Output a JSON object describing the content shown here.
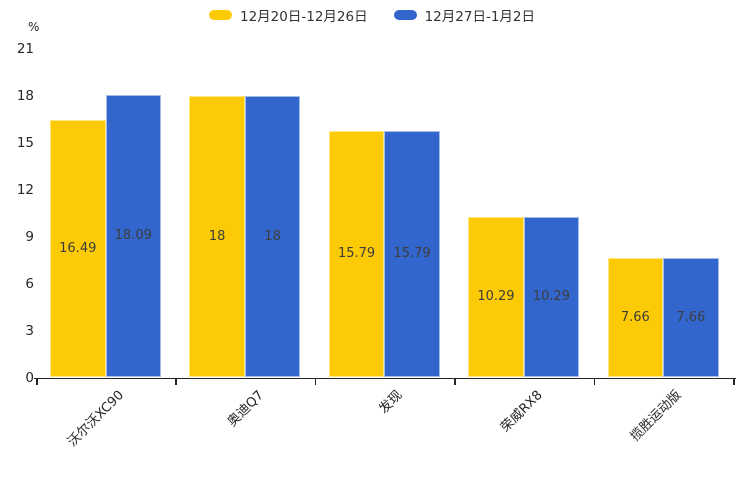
{
  "chart_data": {
    "type": "bar",
    "title": "",
    "categories": [
      "沃尔沃XC90",
      "奥迪Q7",
      "发现",
      "荣威RX8",
      "揽胜运动版"
    ],
    "series": [
      {
        "name": "12月20日-12月26日",
        "color": "#FCCB05",
        "border_color": "#FFE584",
        "values": [
          16.49,
          18,
          15.79,
          10.29,
          7.66
        ]
      },
      {
        "name": "12月27日-1月2日",
        "color": "#3366CC",
        "border_color": "#A3BCE9",
        "values": [
          18.09,
          18,
          15.79,
          10.29,
          7.66
        ]
      }
    ],
    "xlabel": "",
    "ylabel": "%",
    "ylim": [
      0,
      21
    ],
    "yticks": [
      0,
      3,
      6,
      9,
      12,
      15,
      18,
      21
    ],
    "grid": false,
    "legend_position": "top-center",
    "value_labels_shown": true,
    "value_label_color": "#3d3d3d",
    "axis_color": "#262626"
  }
}
